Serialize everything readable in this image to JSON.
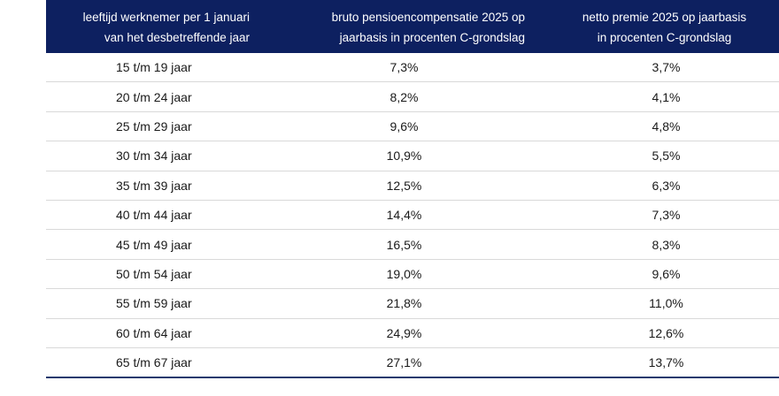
{
  "table": {
    "headers": [
      [
        "leeftijd werknemer per 1 januari",
        "van het desbetreffende jaar"
      ],
      [
        "bruto pensioencompensatie 2025 op",
        "jaarbasis in procenten C-grondslag"
      ],
      [
        "netto premie 2025 op jaarbasis",
        "in procenten C-grondslag"
      ]
    ],
    "rows": [
      {
        "age": "15 t/m 19 jaar",
        "bruto": "7,3%",
        "netto": "3,7%"
      },
      {
        "age": "20 t/m 24 jaar",
        "bruto": "8,2%",
        "netto": "4,1%"
      },
      {
        "age": "25 t/m 29 jaar",
        "bruto": "9,6%",
        "netto": "4,8%"
      },
      {
        "age": "30 t/m 34 jaar",
        "bruto": "10,9%",
        "netto": "5,5%"
      },
      {
        "age": "35 t/m 39 jaar",
        "bruto": "12,5%",
        "netto": "6,3%"
      },
      {
        "age": "40 t/m 44 jaar",
        "bruto": "14,4%",
        "netto": "7,3%"
      },
      {
        "age": "45 t/m 49 jaar",
        "bruto": "16,5%",
        "netto": "8,3%"
      },
      {
        "age": "50 t/m 54 jaar",
        "bruto": "19,0%",
        "netto": "9,6%"
      },
      {
        "age": "55 t/m 59 jaar",
        "bruto": "21,8%",
        "netto": "11,0%"
      },
      {
        "age": "60 t/m 64 jaar",
        "bruto": "24,9%",
        "netto": "12,6%"
      },
      {
        "age": "65 t/m 67 jaar",
        "bruto": "27,1%",
        "netto": "13,7%"
      }
    ]
  },
  "colors": {
    "header_bg": "#0d2060",
    "header_text": "#ffffff",
    "row_divider": "#d9d9d9",
    "bottom_rule": "#1f3a6e"
  }
}
